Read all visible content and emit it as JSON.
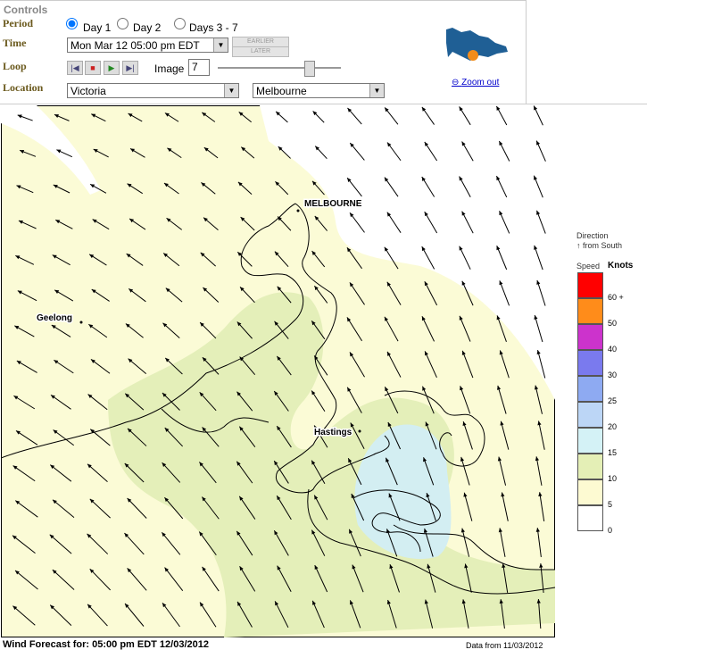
{
  "controls": {
    "title": "Controls",
    "period": {
      "label": "Period",
      "options": [
        "Day 1",
        "Day 2",
        "Days 3 - 7"
      ]
    },
    "time": {
      "label": "Time",
      "value": "Mon Mar 12 05:00 pm EDT",
      "earlier": "EARLIER",
      "later": "LATER"
    },
    "loop": {
      "label": "Loop",
      "image_label": "Image",
      "image_value": "7"
    },
    "location": {
      "label": "Location",
      "state": "Victoria",
      "city": "Melbourne"
    },
    "zoom": "Zoom out"
  },
  "map": {
    "places": [
      "MELBOURNE",
      "Geelong",
      "Hastings"
    ]
  },
  "legend": {
    "direction": "Direction",
    "direction_note": "from South",
    "speed": "Speed",
    "units": "Knots",
    "levels": [
      {
        "label": "60 +",
        "color": "#ff0000"
      },
      {
        "label": "50",
        "color": "#ff8c1a"
      },
      {
        "label": "40",
        "color": "#cc33cc"
      },
      {
        "label": "30",
        "color": "#7a7aee"
      },
      {
        "label": "25",
        "color": "#8eaaf2"
      },
      {
        "label": "20",
        "color": "#bcd6f6"
      },
      {
        "label": "15",
        "color": "#d4f2f6"
      },
      {
        "label": "10",
        "color": "#e4efb6"
      },
      {
        "label": "5",
        "color": "#fdfad2"
      },
      {
        "label": "0",
        "color": "#ffffff"
      }
    ]
  },
  "footer": {
    "forecast": "Wind Forecast for: 05:00 pm EDT 12/03/2012",
    "data_from": "Data from 11/03/2012"
  }
}
